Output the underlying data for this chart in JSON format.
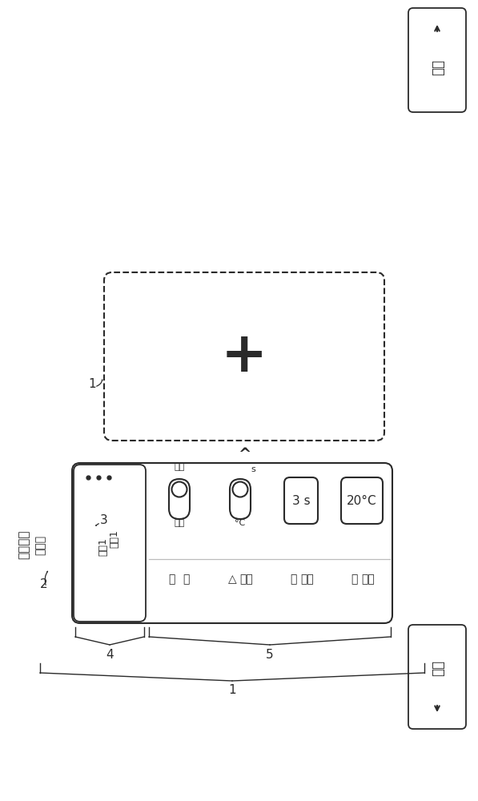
{
  "bg_color": "#ffffff",
  "line_color": "#2a2a2a",
  "scene_title": "场景标题",
  "scene_subtitle": "副标题",
  "step_label": "步骤1",
  "step_sublabel": "标题1",
  "toggle1_top": "装置",
  "toggle1_bot": "米断",
  "toggle2_top": "s",
  "toggle2_bot": "°C",
  "val3": "3 s",
  "val4": "20°C",
  "row_icons": [
    "○",
    "△",
    "○",
    "●"
  ],
  "row_labels": [
    "水",
    "停止",
    "期间",
    "温度"
  ],
  "save_btn": "保存",
  "back_btn": "返回",
  "num1": "1",
  "num2": "2",
  "num3": "3",
  "num4": "4",
  "num5": "5"
}
